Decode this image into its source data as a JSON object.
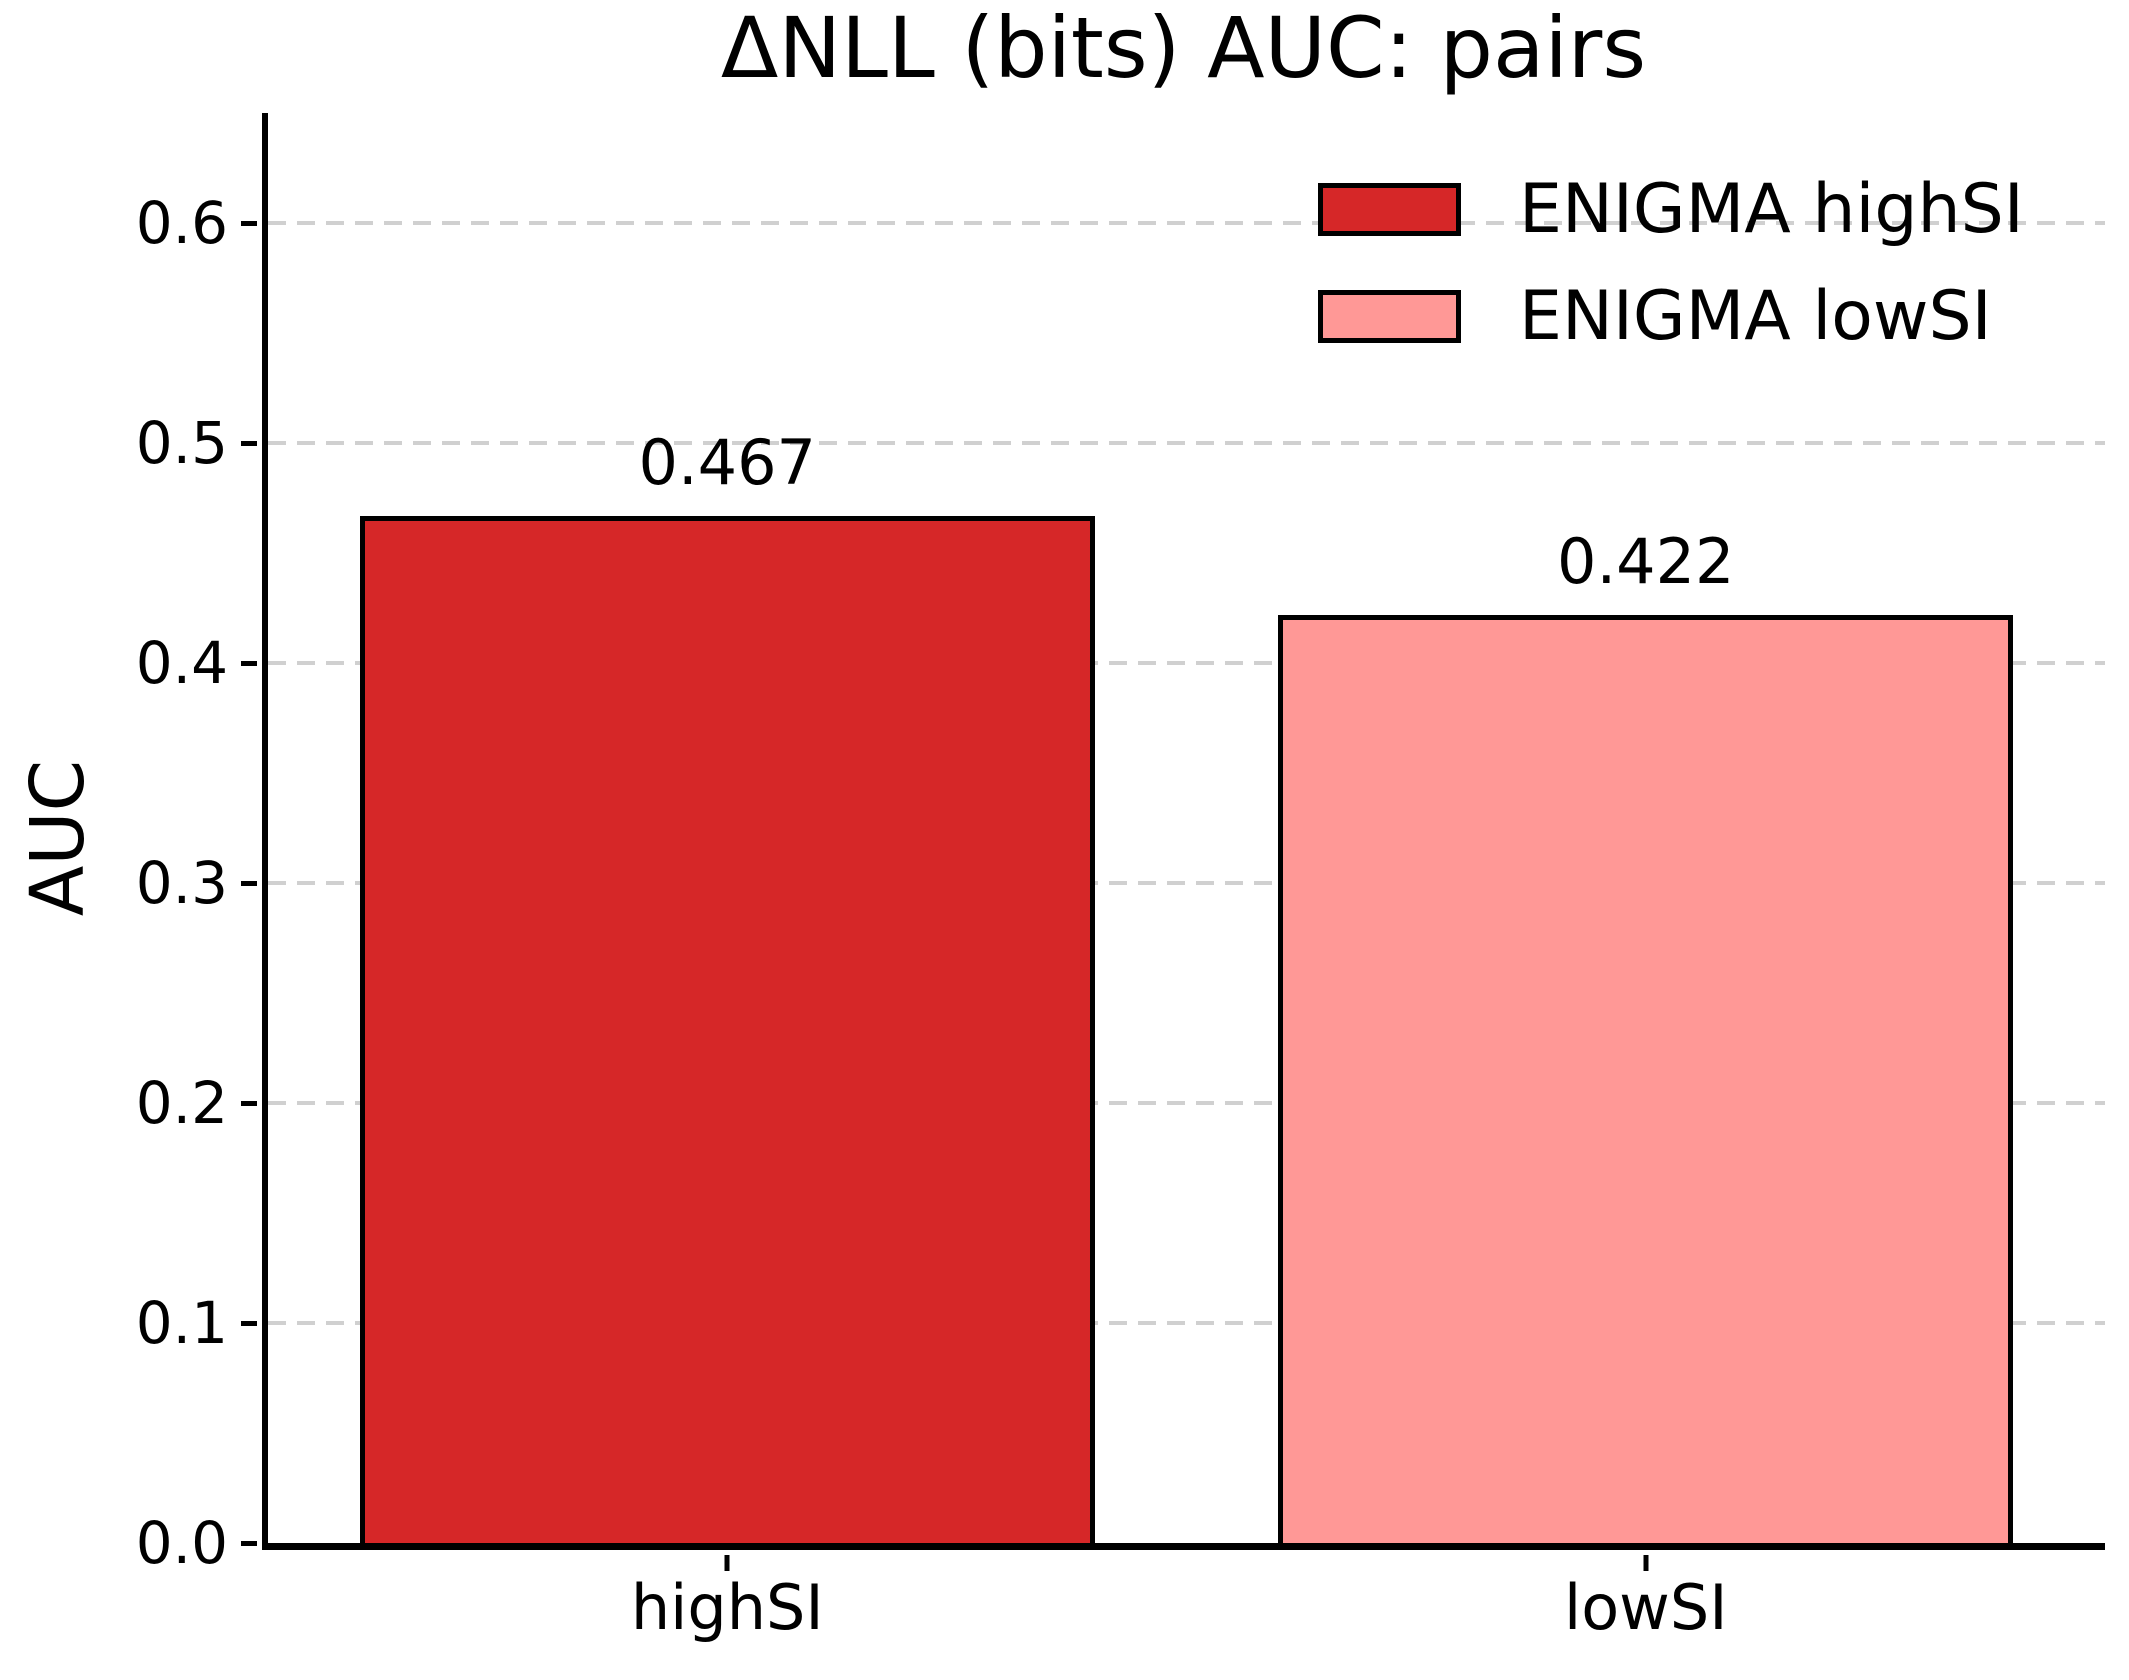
{
  "chart_data": {
    "type": "bar",
    "title": "ΔNLL (bits) AUC: pairs",
    "ylabel": "AUC",
    "xlabel": "",
    "categories": [
      "highSI",
      "lowSI"
    ],
    "values": [
      0.467,
      0.422
    ],
    "value_labels": [
      "0.467",
      "0.422"
    ],
    "bar_colors": [
      "#d62728",
      "#ff9896"
    ],
    "bar_edge_color": "#000000",
    "yticks": [
      0.0,
      0.1,
      0.2,
      0.3,
      0.4,
      0.5,
      0.6
    ],
    "ytick_labels": [
      "0.0",
      "0.1",
      "0.2",
      "0.3",
      "0.4",
      "0.5",
      "0.6"
    ],
    "ylim": [
      0,
      0.65
    ],
    "grid": "horizontal-dashed",
    "gridline_color": "#d0d0d0",
    "legend": [
      {
        "label": "ENIGMA highSI",
        "color": "#d62728"
      },
      {
        "label": "ENIGMA lowSI",
        "color": "#ff9896"
      }
    ],
    "legend_position": "upper right"
  }
}
